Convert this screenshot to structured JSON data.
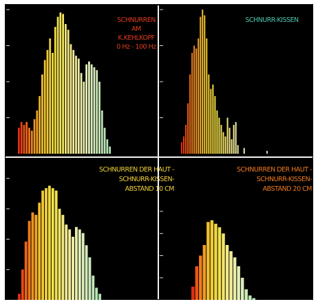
{
  "colors": {
    "background": "#000000",
    "frame": "#f2f2f2",
    "tick": "#d9d9d9",
    "red_label": "#e03b1f",
    "cyan_label": "#4fc6b0",
    "yellow_label": "#f2d23a",
    "orange_label": "#f07a20"
  },
  "chart_data": [
    {
      "type": "bar",
      "title_lines": [
        "SCHNURREN",
        "AM",
        "K.KEHLKOPF",
        "0 Hz - 100 Hz"
      ],
      "title_color": "red",
      "ylim": [
        0,
        100
      ],
      "values": [
        18,
        22,
        20,
        22,
        18,
        16,
        24,
        30,
        40,
        55,
        65,
        72,
        80,
        70,
        88,
        95,
        98,
        97,
        90,
        86,
        76,
        72,
        68,
        66,
        56,
        50,
        62,
        64,
        62,
        60,
        58,
        50,
        30,
        18,
        10,
        5
      ]
    },
    {
      "type": "bar",
      "title_lines": [
        "SCHNURR-KISSEN"
      ],
      "title_color": "cyan",
      "ylim": [
        0,
        100
      ],
      "values": [
        8,
        12,
        20,
        35,
        55,
        70,
        75,
        73,
        80,
        95,
        100,
        96,
        80,
        55,
        45,
        48,
        40,
        30,
        25,
        20,
        15,
        12,
        25,
        18,
        10,
        20,
        22,
        6,
        0,
        0,
        4,
        0,
        0,
        0,
        0,
        0,
        0,
        0,
        0,
        0,
        0,
        2
      ]
    },
    {
      "type": "bar",
      "title_lines": [
        "SCHNURREN DER HAUT -",
        "SCHNURR-KISSEN-",
        "ABSTAND 10 CM"
      ],
      "title_color": "yellow",
      "ylim": [
        0,
        100
      ],
      "values": [
        5,
        25,
        48,
        65,
        72,
        70,
        80,
        90,
        92,
        94,
        92,
        90,
        75,
        70,
        62,
        58,
        52,
        60,
        58,
        55,
        45,
        35,
        20,
        10,
        5
      ]
    },
    {
      "type": "bar",
      "title_lines": [
        "SCHNURREN DER HAUT -",
        "SCHNURR-KISSEN-",
        "ABSTAND 20 CM"
      ],
      "title_color": "orange",
      "ylim": [
        0,
        100
      ],
      "values": [
        15,
        38,
        50,
        62,
        88,
        90,
        86,
        82,
        75,
        62,
        55,
        48,
        38,
        25,
        12,
        5,
        2
      ]
    }
  ]
}
